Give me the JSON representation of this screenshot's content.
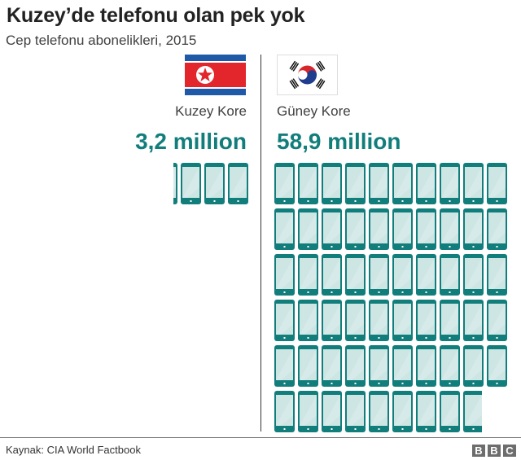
{
  "header": {
    "title": "Kuzey’de telefonu olan pek yok",
    "subtitle": "Cep telefonu abonelikleri, 2015"
  },
  "countries": [
    {
      "name": "Kuzey Kore",
      "value_label": "3,2 million",
      "flag": "north-korea-flag"
    },
    {
      "name": "Güney Kore",
      "value_label": "58,9 million",
      "flag": "south-korea-flag"
    }
  ],
  "footer": {
    "source": "Kaynak: CIA World Factbook",
    "logo": [
      "B",
      "B",
      "C"
    ]
  },
  "colors": {
    "accent": "#127e7c",
    "phone_body": "#127e7c",
    "phone_screen": "#cde6e4"
  },
  "chart_data": {
    "type": "pictogram",
    "title": "Kuzey’de telefonu olan pek yok",
    "subtitle": "Cep telefonu abonelikleri, 2015",
    "unit": "1 phone icon = 1 million subscriptions",
    "categories": [
      "Kuzey Kore",
      "Güney Kore"
    ],
    "values": [
      3.2,
      58.9
    ],
    "value_labels": [
      "3,2 million",
      "58,9 million"
    ],
    "source": "Kaynak: CIA World Factbook"
  }
}
